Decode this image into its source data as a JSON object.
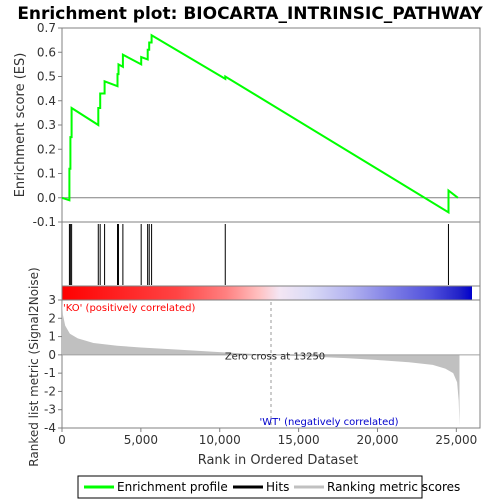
{
  "chart_data": {
    "type": "line",
    "title": "Enrichment plot: BIOCARTA_INTRINSIC_PATHWAY",
    "es_panel": {
      "ylabel": "Enrichment score (ES)",
      "ylim": [
        -0.1,
        0.7
      ],
      "yticks": [
        "0.7",
        "0.6",
        "0.5",
        "0.4",
        "0.3",
        "0.2",
        "0.1",
        "0.0",
        "-0.1"
      ],
      "series": [
        {
          "name": "Enrichment profile",
          "color": "#00ff00",
          "x": [
            0,
            470,
            470,
            530,
            530,
            610,
            610,
            2300,
            2300,
            2420,
            2420,
            2700,
            2700,
            3520,
            3520,
            3580,
            3580,
            3860,
            3860,
            5020,
            5020,
            5430,
            5430,
            5530,
            5530,
            5680,
            5680,
            10350,
            10350,
            24500,
            24500,
            25100
          ],
          "y": [
            0,
            -0.01,
            0.12,
            0.12,
            0.25,
            0.25,
            0.37,
            0.3,
            0.37,
            0.37,
            0.43,
            0.43,
            0.48,
            0.46,
            0.51,
            0.51,
            0.55,
            0.54,
            0.59,
            0.55,
            0.58,
            0.57,
            0.61,
            0.61,
            0.64,
            0.64,
            0.67,
            0.49,
            0.5,
            -0.06,
            0.03,
            0.0
          ]
        }
      ]
    },
    "hits_panel": {
      "hit_ranks": [
        470,
        530,
        610,
        2300,
        2420,
        2700,
        3520,
        3580,
        3860,
        5020,
        5430,
        5530,
        5680,
        10350,
        24500
      ]
    },
    "ranking_panel": {
      "ylabel": "Ranked list metric (Signal2Noise)",
      "xlabel": "Rank in Ordered Dataset",
      "xlim": [
        0,
        26500
      ],
      "ylim": [
        -4,
        3
      ],
      "yticks": [
        "3",
        "2",
        "1",
        "0",
        "-1",
        "-2",
        "-3",
        "-4"
      ],
      "xticks": [
        "0",
        "5,000",
        "10,000",
        "15,000",
        "20,000",
        "25,000"
      ],
      "n_genes": 25200,
      "zero_cross": 13250,
      "zero_cross_label": "Zero cross at 13250",
      "pos_label": "'KO' (positively correlated)",
      "neg_label": "'WT' (negatively correlated)",
      "pos_color": "#ff0000",
      "neg_color": "#0000cc",
      "metric_profile": {
        "rank": [
          0,
          60,
          200,
          500,
          1000,
          2000,
          3500,
          5000,
          7500,
          10000,
          12000,
          13250,
          15000,
          18000,
          20000,
          22000,
          23500,
          24300,
          24800,
          25050,
          25150,
          25200
        ],
        "value": [
          3.0,
          2.2,
          1.6,
          1.15,
          0.9,
          0.65,
          0.5,
          0.4,
          0.28,
          0.15,
          0.05,
          0.0,
          -0.07,
          -0.18,
          -0.28,
          -0.4,
          -0.55,
          -0.75,
          -1.0,
          -1.5,
          -2.5,
          -3.9
        ]
      }
    },
    "legend": {
      "items": [
        {
          "label": "Enrichment profile",
          "color": "#00ff00"
        },
        {
          "label": "Hits",
          "color": "#000000"
        },
        {
          "label": "Ranking metric scores",
          "color": "#c0c0c0"
        }
      ]
    }
  }
}
